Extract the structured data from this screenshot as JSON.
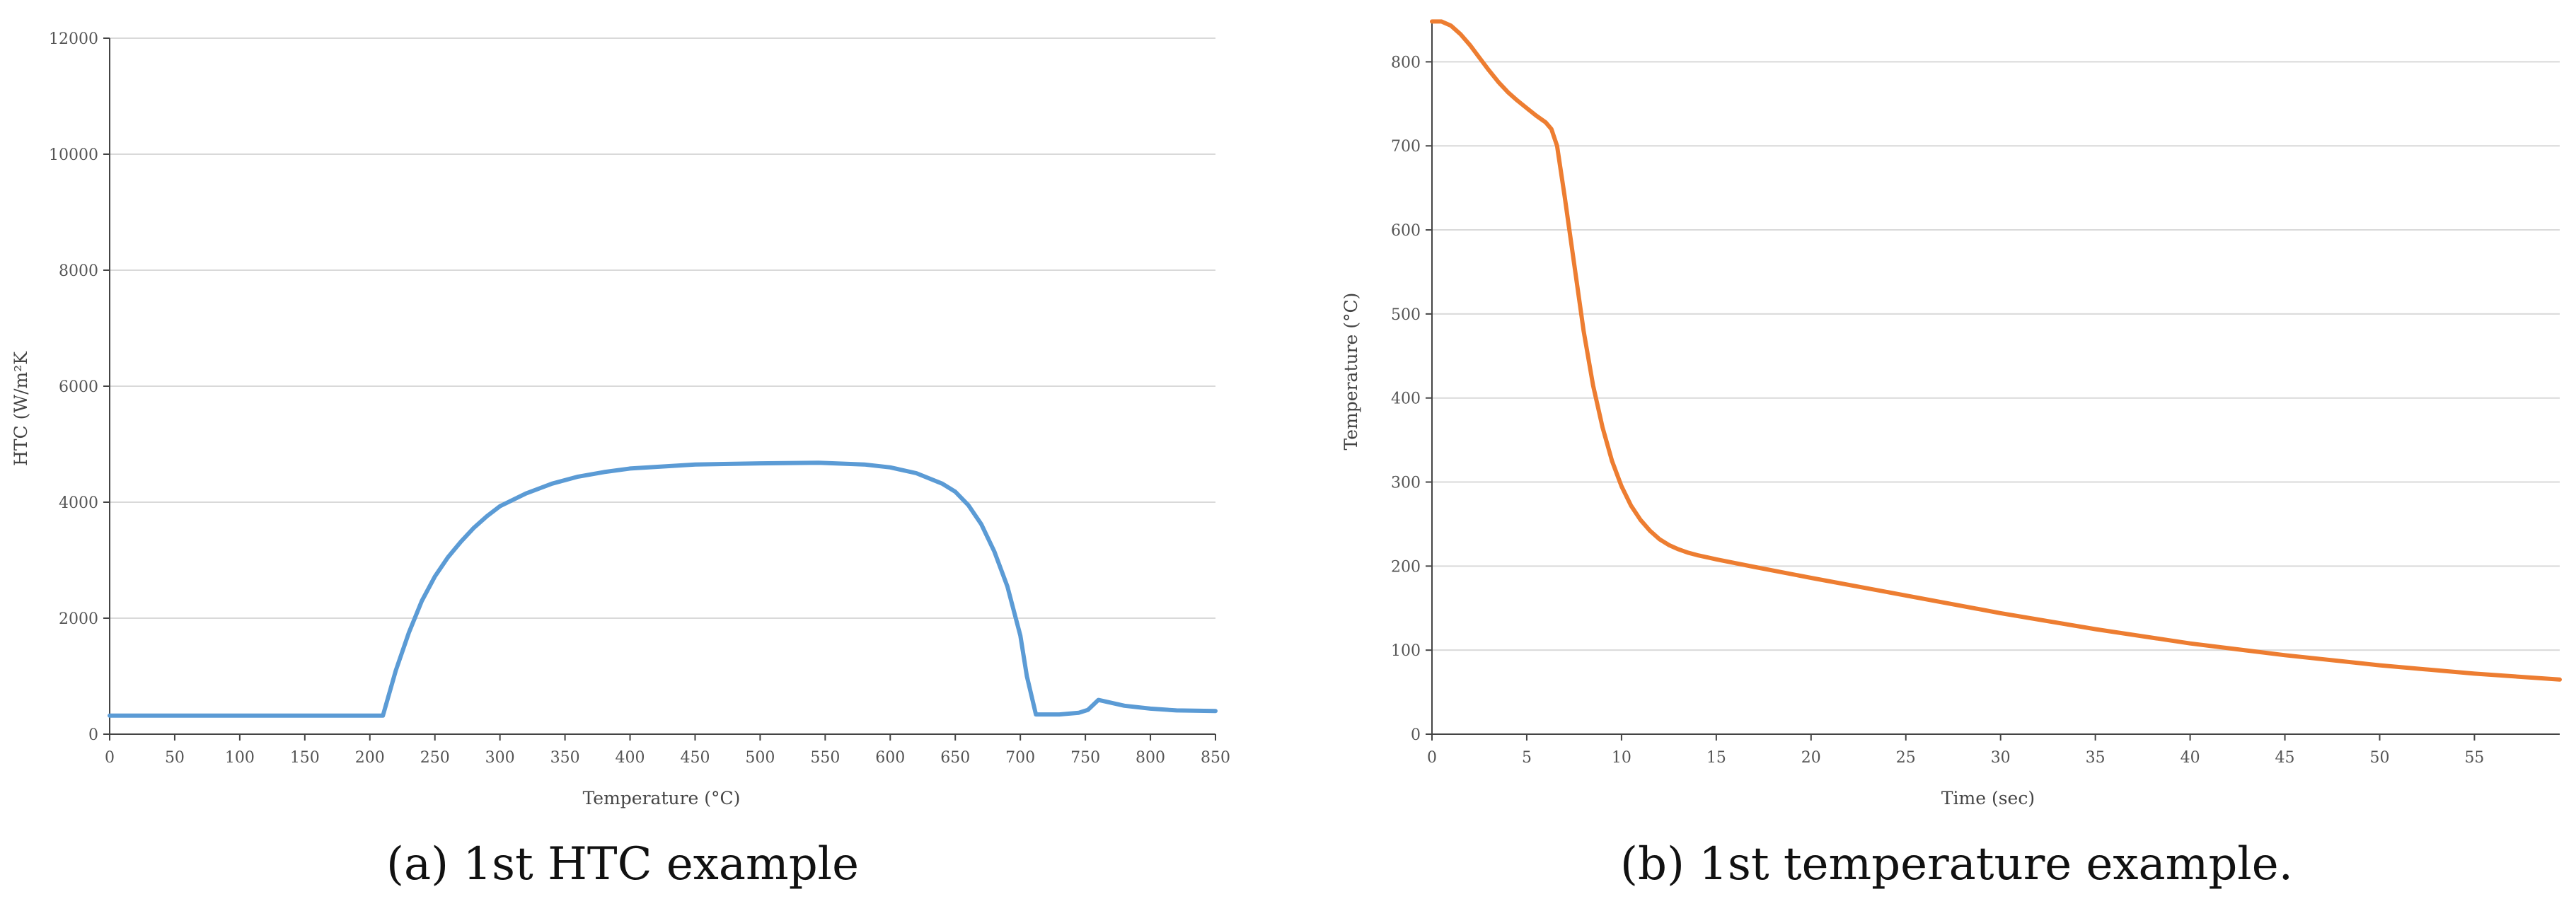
{
  "chart_data": [
    {
      "type": "line",
      "xlabel": "Temperature (°C)",
      "ylabel": "HTC (W/m²K",
      "xlim": [
        0,
        850
      ],
      "ylim": [
        0,
        12000
      ],
      "xticks": [
        0,
        50,
        100,
        150,
        200,
        250,
        300,
        350,
        400,
        450,
        500,
        550,
        600,
        650,
        700,
        750,
        800,
        850
      ],
      "yticks": [
        0,
        2000,
        4000,
        6000,
        8000,
        10000,
        12000
      ],
      "grid": "horizontal",
      "series": [
        {
          "color": "#5b9bd5",
          "x": [
            0,
            100,
            200,
            210,
            220,
            230,
            240,
            250,
            260,
            270,
            280,
            290,
            300,
            320,
            340,
            360,
            380,
            400,
            450,
            500,
            545,
            580,
            600,
            620,
            640,
            650,
            660,
            670,
            680,
            690,
            700,
            705,
            712,
            730,
            745,
            752,
            760,
            770,
            780,
            800,
            820,
            850
          ],
          "y": [
            320,
            320,
            320,
            320,
            1100,
            1750,
            2300,
            2720,
            3050,
            3320,
            3560,
            3760,
            3930,
            4150,
            4320,
            4440,
            4520,
            4580,
            4650,
            4670,
            4680,
            4650,
            4600,
            4500,
            4320,
            4180,
            3950,
            3620,
            3150,
            2550,
            1700,
            1000,
            340,
            340,
            370,
            420,
            590,
            540,
            490,
            440,
            410,
            400
          ]
        }
      ]
    },
    {
      "type": "line",
      "xlabel": "Time (sec)",
      "ylabel": "Temperature (°C)",
      "xlim": [
        0,
        59.5
      ],
      "ylim": [
        0,
        850
      ],
      "xticks": [
        0,
        5,
        10,
        15,
        20,
        25,
        30,
        35,
        40,
        45,
        50,
        55
      ],
      "yticks": [
        0,
        100,
        200,
        300,
        400,
        500,
        600,
        700,
        800
      ],
      "grid": "horizontal",
      "series": [
        {
          "color": "#ed7d31",
          "x": [
            0,
            0.5,
            1,
            1.5,
            2,
            2.5,
            3,
            3.5,
            4,
            4.5,
            5,
            5.5,
            6,
            6.3,
            6.6,
            7,
            7.5,
            8,
            8.5,
            9,
            9.5,
            10,
            10.5,
            11,
            11.5,
            12,
            12.5,
            13,
            13.5,
            14,
            15,
            17,
            20,
            25,
            30,
            35,
            40,
            45,
            50,
            55,
            59.5
          ],
          "y": [
            848,
            848,
            843,
            833,
            820,
            805,
            790,
            776,
            764,
            754,
            745,
            736,
            728,
            720,
            700,
            640,
            560,
            480,
            415,
            365,
            325,
            295,
            272,
            255,
            242,
            232,
            225,
            220,
            216,
            213,
            208,
            199,
            186,
            165,
            144,
            125,
            108,
            94,
            82,
            72,
            65
          ]
        }
      ]
    }
  ],
  "captions": {
    "a": "(a)  1st HTC example",
    "b": "(b)  1st temperature example."
  }
}
